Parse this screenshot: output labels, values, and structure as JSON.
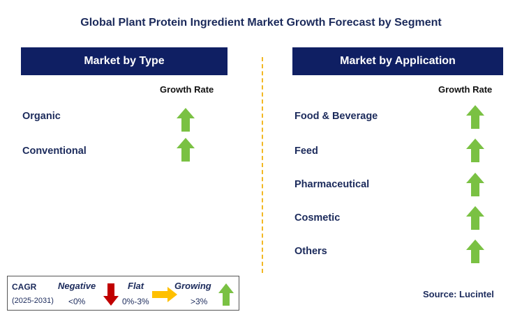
{
  "title": "Global Plant Protein Ingredient Market Growth Forecast by Segment",
  "left_panel": {
    "header": "Market by Type",
    "growth_header": "Growth Rate",
    "items": [
      {
        "label": "Organic",
        "trend": "growing"
      },
      {
        "label": "Conventional",
        "trend": "growing"
      }
    ]
  },
  "right_panel": {
    "header": "Market by Application",
    "growth_header": "Growth Rate",
    "items": [
      {
        "label": "Food & Beverage",
        "trend": "growing"
      },
      {
        "label": "Feed",
        "trend": "growing"
      },
      {
        "label": "Pharmaceutical",
        "trend": "growing"
      },
      {
        "label": "Cosmetic",
        "trend": "growing"
      },
      {
        "label": "Others",
        "trend": "growing"
      }
    ]
  },
  "legend": {
    "cagr_label": "CAGR",
    "period": "(2025-2031)",
    "negative": {
      "label": "Negative",
      "range": "<0%",
      "icon": "down-arrow-icon",
      "color": "#c00000"
    },
    "flat": {
      "label": "Flat",
      "range": "0%-3%",
      "icon": "right-arrow-icon",
      "color": "#ffc000"
    },
    "growing": {
      "label": "Growing",
      "range": ">3%",
      "icon": "up-arrow-icon",
      "color": "#7ac143"
    }
  },
  "source": "Source: Lucintel",
  "colors": {
    "header_bg": "#0f1f63",
    "divider": "#f2b824",
    "up_arrow": "#7ac143"
  }
}
